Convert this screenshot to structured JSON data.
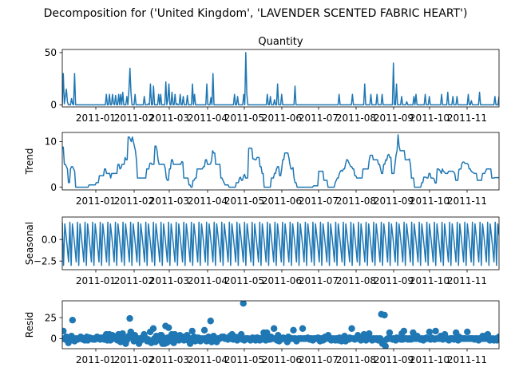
{
  "chart_data": {
    "type": "line",
    "title": "Decomposition for ('United Kingdom', 'LAVENDER SCENTED FABRIC HEART')",
    "x_tick_labels": [
      "2011-01",
      "2011-02",
      "2011-03",
      "2011-04",
      "2011-05",
      "2011-06",
      "2011-07",
      "2011-08",
      "2011-09",
      "2011-10",
      "2011-11"
    ],
    "x_range_days": [
      0,
      345
    ],
    "line_color": "#1f77b4",
    "panels": [
      {
        "title": "Quantity",
        "ylabel": "",
        "type": "line",
        "ylim": [
          -2,
          53
        ],
        "yticks": [
          0,
          50
        ],
        "ytick_labels": [
          "0",
          "50"
        ],
        "values": [
          0,
          30,
          1,
          8,
          15,
          3,
          0,
          0,
          0,
          6,
          1,
          0,
          30,
          0,
          0,
          0,
          0,
          0,
          0,
          0,
          0,
          0,
          0,
          0,
          0,
          0,
          0,
          0,
          0,
          0,
          0,
          0,
          0,
          0,
          0,
          0,
          0,
          0,
          0,
          0,
          0,
          0,
          0,
          10,
          0,
          0,
          10,
          0,
          0,
          10,
          1,
          0,
          9,
          0,
          0,
          10,
          0,
          10,
          0,
          12,
          0,
          0,
          0,
          8,
          0,
          14,
          35,
          12,
          0,
          0,
          0,
          10,
          0,
          0,
          0,
          0,
          0,
          0,
          0,
          0,
          8,
          0,
          0,
          0,
          1,
          0,
          20,
          0,
          0,
          18,
          0,
          0,
          0,
          0,
          10,
          0,
          10,
          0,
          0,
          0,
          0,
          22,
          0,
          5,
          20,
          0,
          0,
          12,
          0,
          0,
          10,
          0,
          1,
          0,
          0,
          10,
          0,
          0,
          8,
          0,
          0,
          0,
          9,
          0,
          0,
          0,
          0,
          20,
          0,
          10,
          0,
          0,
          0,
          0,
          0,
          0,
          0,
          0,
          0,
          0,
          0,
          20,
          0,
          0,
          0,
          7,
          0,
          30,
          0,
          0,
          0,
          0,
          0,
          0,
          0,
          0,
          0,
          0,
          0,
          0,
          0,
          0,
          0,
          0,
          0,
          0,
          0,
          0,
          10,
          0,
          0,
          8,
          0,
          0,
          0,
          0,
          0,
          10,
          0,
          50,
          10,
          0,
          0,
          0,
          0,
          0,
          0,
          0,
          0,
          0,
          0,
          0,
          0,
          0,
          0,
          0,
          0,
          0,
          0,
          0,
          10,
          0,
          0,
          8,
          0,
          0,
          0,
          5,
          0,
          0,
          20,
          0,
          0,
          0,
          10,
          0,
          0,
          0,
          0,
          0,
          0,
          0,
          0,
          0,
          0,
          0,
          0,
          18,
          0,
          0,
          0,
          0,
          0,
          0,
          0,
          0,
          0,
          0,
          0,
          0,
          0,
          0,
          0,
          0,
          0,
          0,
          0,
          0,
          0,
          0,
          0,
          0,
          0,
          0,
          0,
          0,
          0,
          0,
          0,
          0,
          0,
          0,
          0,
          0,
          0,
          0,
          0,
          0,
          0,
          0,
          10,
          0,
          0,
          0,
          0,
          0,
          0,
          0,
          0,
          0,
          0,
          0,
          0,
          10,
          0,
          0,
          0,
          0,
          0,
          0,
          0,
          0,
          0,
          0,
          0,
          20,
          0,
          0,
          0,
          0,
          0,
          10,
          0,
          0,
          0,
          0,
          0,
          10,
          0,
          0,
          0,
          0,
          10,
          0,
          0,
          0,
          0,
          0,
          0,
          0,
          0,
          0,
          0,
          40,
          0,
          0,
          20,
          0,
          0,
          0,
          0,
          8,
          0,
          0,
          0,
          0,
          3,
          0,
          0,
          0,
          0,
          0,
          0,
          8,
          0,
          10,
          0,
          0,
          0,
          0,
          0,
          0,
          0,
          0,
          10,
          0,
          0,
          0,
          8,
          0,
          0,
          0,
          0,
          0,
          0,
          0,
          0,
          0,
          0,
          0,
          10,
          0,
          0,
          0,
          0,
          0,
          12,
          0,
          0,
          0,
          0,
          8,
          0,
          0,
          0,
          8,
          0,
          0,
          0,
          0,
          0,
          0,
          0,
          0,
          0,
          0,
          10,
          0,
          0,
          4,
          0,
          0,
          0,
          0,
          0,
          0,
          0,
          12,
          0,
          0,
          0,
          0,
          0,
          0,
          0,
          0,
          0,
          0,
          0,
          0,
          0,
          0,
          8,
          0,
          0,
          0,
          8
        ]
      },
      {
        "title": "",
        "ylabel": "Trend",
        "type": "line",
        "ylim": [
          -0.6,
          12
        ],
        "yticks": [
          0,
          10
        ],
        "ytick_labels": [
          "0",
          "10"
        ],
        "values": [
          8.5,
          8.8,
          5,
          5,
          4.5,
          4,
          1,
          1,
          4,
          4.5,
          4.5,
          4,
          3.5,
          0,
          0,
          0,
          0,
          0,
          0,
          0,
          0,
          0,
          0,
          0,
          0,
          0,
          0.5,
          0.5,
          0.5,
          0.5,
          0.5,
          0.5,
          0.5,
          1,
          1,
          1,
          2.5,
          2.5,
          2.5,
          2.5,
          2.5,
          4,
          4,
          3,
          3,
          3,
          3,
          2,
          3,
          3,
          3,
          3,
          3,
          3,
          5,
          5,
          4,
          4.2,
          5,
          5,
          5,
          6.5,
          6,
          6,
          11,
          11,
          10.5,
          10,
          11,
          10,
          9,
          8,
          6,
          2,
          2,
          2,
          2,
          2,
          2,
          2,
          2,
          2,
          4,
          4,
          4,
          5.2,
          5.3,
          5,
          5,
          5,
          9,
          9,
          8,
          6,
          5,
          5,
          5,
          5,
          5,
          5,
          4,
          2,
          1.5,
          1.5,
          4,
          4,
          6,
          6,
          5,
          5,
          5,
          5,
          5,
          5,
          5,
          5,
          5.6,
          5.5,
          2,
          2,
          2,
          2,
          2,
          0.5,
          0.5,
          0,
          0,
          1.5,
          1.5,
          2,
          2,
          4,
          4,
          4,
          4,
          4,
          4,
          4.5,
          4.5,
          6,
          6,
          5,
          5,
          5,
          5.1,
          6,
          8,
          7.5,
          7.5,
          5,
          5,
          5,
          5,
          5,
          2,
          2,
          1.5,
          1,
          0.5,
          0.5,
          0.5,
          0.5,
          0,
          0,
          0,
          0,
          0,
          0,
          0,
          1,
          1,
          1,
          2,
          2.2,
          1.5,
          1.5,
          2.5,
          2.8,
          2,
          2,
          2,
          8.5,
          8.6,
          8.5,
          8.5,
          6.2,
          6.2,
          6,
          6,
          6.5,
          6.5,
          6.5,
          4.5,
          4.5,
          3,
          3,
          0,
          0,
          0,
          0,
          0,
          0,
          0,
          2,
          2,
          2,
          3,
          3,
          4,
          4.5,
          4.5,
          2.5,
          2.5,
          4,
          6,
          6,
          7.5,
          7.5,
          7.5,
          7.5,
          6.5,
          5,
          4,
          4,
          4.3,
          2,
          1,
          1,
          0,
          0,
          0,
          0,
          0,
          0,
          0,
          0,
          0,
          0,
          0,
          0,
          0,
          0,
          0,
          0,
          0.3,
          0.3,
          0.3,
          0.3,
          0.3,
          3.5,
          3.5,
          3.5,
          3.5,
          3.5,
          1.5,
          1.5,
          1.5,
          1.5,
          0,
          0,
          0,
          0,
          0,
          0,
          0,
          1,
          1.5,
          2,
          2,
          3,
          3.5,
          3.7,
          3.5,
          4,
          4,
          5,
          6,
          6,
          5.5,
          5,
          4.5,
          4.5,
          4,
          4,
          2.5,
          2.5,
          2,
          2,
          2,
          2,
          2,
          2,
          4,
          4,
          4,
          4,
          4,
          4,
          6,
          7,
          7,
          7,
          6,
          6,
          6,
          6,
          6,
          5,
          5,
          4,
          3,
          3,
          5,
          5,
          6,
          5.9,
          7,
          7.2,
          6.5,
          6.5,
          3,
          3,
          3,
          5,
          7,
          8,
          11.5,
          9,
          8,
          8,
          8,
          8,
          8,
          6,
          6,
          6,
          6,
          6.2,
          5,
          2,
          2,
          2,
          0,
          0,
          0,
          0,
          0,
          0,
          0,
          1,
          1,
          2.2,
          2.2,
          2.2,
          2,
          2,
          3,
          3,
          2,
          2,
          2,
          1.8,
          0.9,
          0.9,
          4,
          4,
          3.8,
          3.5,
          3,
          4,
          3.5,
          3.3,
          3,
          3,
          3,
          3.5,
          3.5,
          3.5,
          3.5,
          3.5,
          3.3,
          3,
          1.5,
          1.5,
          1.5,
          3.8,
          4,
          4,
          5.2,
          5.5,
          5.5,
          5.2,
          5.2,
          5.2,
          5,
          4,
          4,
          3.5,
          3.3,
          3.2,
          3,
          3,
          3,
          1.5,
          1.5,
          1.5,
          1.5,
          1.5,
          3,
          3,
          3,
          3.5,
          4,
          4,
          4,
          4,
          4,
          2,
          2,
          2,
          2.1,
          2.1,
          2.1,
          2.1,
          2.1
        ]
      },
      {
        "title": "",
        "ylabel": "Seasonal",
        "type": "line",
        "ylim": [
          -3.5,
          2.6
        ],
        "yticks": [
          0.0,
          -2.5
        ],
        "ytick_labels": [
          "0.0",
          "−2.5"
        ],
        "period": 6,
        "pattern": [
          2.0,
          -3.0,
          1.8,
          0.5,
          -1.0,
          -2.6
        ],
        "values": []
      },
      {
        "title": "",
        "ylabel": "Resid",
        "type": "scatter",
        "ylim": [
          -12,
          45
        ],
        "yticks": [
          25,
          0
        ],
        "ytick_labels": [
          "25",
          "0"
        ],
        "values": [
          0,
          9,
          0,
          -1,
          2,
          -2,
          -5,
          0,
          -1,
          3,
          22,
          -2,
          -3,
          0,
          0,
          -1,
          0,
          0,
          2,
          1,
          -1,
          0,
          -2,
          0,
          2,
          -2,
          0,
          1,
          0,
          0,
          -1,
          0,
          -1,
          0,
          2,
          1,
          0,
          -1,
          1,
          1,
          0,
          -1,
          1,
          5,
          -2,
          0,
          5,
          -2,
          -1,
          4,
          0,
          2,
          1,
          0,
          -2,
          5,
          0,
          -4,
          0,
          6,
          0,
          0,
          -6,
          -2,
          0,
          3,
          24,
          8,
          3,
          1,
          -3,
          4,
          0,
          -2,
          0,
          -6,
          0,
          -2,
          1,
          0,
          5,
          1,
          0,
          -3,
          -1,
          -2,
          8,
          -5,
          -3,
          12,
          0,
          -4,
          3,
          2,
          2,
          -2,
          4,
          4,
          -6,
          1,
          -6,
          15,
          -5,
          1,
          13,
          -3,
          2,
          5,
          0,
          -5,
          5,
          0,
          1,
          0,
          -2,
          4,
          0,
          2,
          2,
          -2,
          1,
          2,
          4,
          -2,
          0,
          -6,
          0,
          9,
          -2,
          2,
          -3,
          -1,
          -2,
          1,
          0,
          -3,
          0,
          -1,
          0,
          10,
          0,
          -3,
          1,
          2,
          0,
          21,
          -4,
          2,
          3,
          0,
          -1,
          -4,
          0,
          0,
          0,
          1,
          2,
          2,
          2,
          0,
          0,
          0,
          -1,
          0,
          3,
          0,
          5,
          -1,
          0,
          2,
          -1,
          -2,
          1,
          2,
          0,
          5,
          -1,
          42,
          -2,
          0,
          0,
          0,
          0,
          -1,
          -2,
          -1,
          1,
          0,
          0,
          -2,
          1,
          1,
          0,
          -2,
          0,
          -1,
          1,
          7,
          0,
          -2,
          7,
          0,
          -1,
          -1,
          2,
          0,
          0,
          12,
          0,
          -1,
          -2,
          4,
          -3,
          0,
          -1,
          0,
          1,
          0,
          0,
          0,
          -4,
          2,
          1,
          0,
          0,
          0,
          10,
          0,
          0,
          -3,
          -1,
          0,
          0,
          0,
          0,
          12,
          0,
          0,
          0,
          0,
          1,
          0,
          -1,
          0,
          0,
          -2,
          0,
          0,
          0,
          0,
          1,
          -1,
          -3,
          0,
          0,
          -2,
          1,
          2,
          0,
          1,
          4,
          0,
          0,
          -2,
          0,
          -1,
          0,
          -2,
          0,
          0,
          -2,
          1,
          0,
          -3,
          -2,
          0,
          3,
          -3,
          0,
          0,
          -1,
          1,
          0,
          12,
          0,
          0,
          -1,
          0,
          0,
          4,
          0,
          0,
          -2,
          0,
          1,
          5,
          0,
          -2,
          0,
          2,
          6,
          0,
          0,
          -2,
          0,
          0,
          -1,
          0,
          0,
          -2,
          0,
          0,
          29,
          -6,
          -3,
          28,
          -9,
          -1,
          0,
          0,
          7,
          0,
          0,
          -1,
          0,
          0,
          -2,
          1,
          0,
          0,
          0,
          -1,
          6,
          -1,
          9,
          0,
          0,
          0,
          -1,
          0,
          0,
          -1,
          0,
          7,
          0,
          0,
          0,
          3,
          0,
          0,
          -1,
          0,
          0,
          -2,
          0,
          0,
          1,
          0,
          0,
          8,
          -1,
          1,
          0,
          0,
          -1,
          9,
          0,
          0,
          0,
          0,
          3,
          0,
          -1,
          0,
          5,
          0,
          0,
          -1,
          -2,
          0,
          0,
          0,
          0,
          -1,
          0,
          7,
          0,
          -2,
          2,
          0,
          0,
          0,
          0,
          0,
          0,
          0,
          8,
          0,
          0,
          0,
          0,
          0,
          0,
          -1,
          0,
          0,
          0,
          -2,
          0,
          0,
          0,
          3,
          0,
          0,
          0,
          4,
          5,
          0,
          -2,
          0,
          -1,
          0,
          -2,
          -1,
          0,
          -2,
          0,
          2
        ]
      }
    ]
  }
}
